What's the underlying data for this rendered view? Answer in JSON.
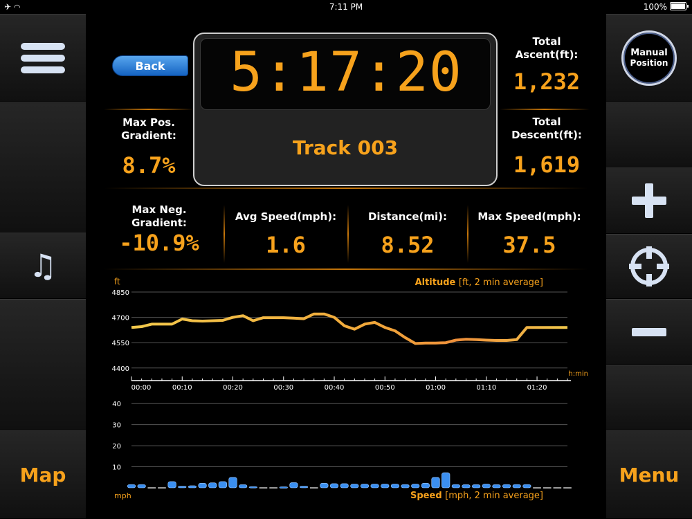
{
  "status_bar": {
    "time": "7:11 PM",
    "battery": "100%"
  },
  "nav": {
    "back_label": "Back",
    "map_label": "Map",
    "menu_label": "Menu",
    "manual_position_label": [
      "Manual",
      "Position"
    ]
  },
  "timer": {
    "value": "5:17:20",
    "track_name": "Track 003"
  },
  "stats": {
    "total_ascent": {
      "label": [
        "Total",
        "Ascent(ft):"
      ],
      "value": "1,232"
    },
    "total_descent": {
      "label": [
        "Total",
        "Descent(ft):"
      ],
      "value": "1,619"
    },
    "max_pos_gradient": {
      "label": [
        "Max Pos.",
        "Gradient:"
      ],
      "value": "8.7%"
    },
    "max_neg_gradient": {
      "label": [
        "Max Neg.",
        "Gradient:"
      ],
      "value": "-10.9%"
    },
    "avg_speed": {
      "label": "Avg Speed(mph):",
      "value": "1.6"
    },
    "distance": {
      "label": "Distance(mi):",
      "value": "8.52"
    },
    "max_speed": {
      "label": "Max Speed(mph):",
      "value": "37.5"
    }
  },
  "colors": {
    "accent": "#f7a21c",
    "altitude_line": "#f2c94c",
    "speed_bar": "#3b8ff0",
    "icon": "#d7e2f3"
  },
  "chart_data": [
    {
      "type": "line",
      "title": "Altitude",
      "subtitle": "[ft, 2 min average]",
      "ylabel": "ft",
      "xlabel": "h:min",
      "yticks": [
        4850,
        4700,
        4550,
        4400
      ],
      "ylim": [
        4350,
        4850
      ],
      "xticks": [
        "00:00",
        "00:10",
        "00:20",
        "00:30",
        "00:40",
        "00:50",
        "01:00",
        "01:10",
        "01:20"
      ],
      "xlim": [
        0,
        86
      ],
      "x": [
        0,
        2,
        4,
        6,
        8,
        10,
        12,
        14,
        16,
        18,
        20,
        22,
        24,
        26,
        28,
        30,
        32,
        34,
        36,
        38,
        40,
        42,
        44,
        46,
        48,
        50,
        52,
        54,
        56,
        58,
        60,
        62,
        64,
        66,
        68,
        70,
        72,
        74,
        76,
        78,
        80,
        82,
        84,
        86
      ],
      "values": [
        4640,
        4645,
        4660,
        4660,
        4660,
        4690,
        4680,
        4678,
        4680,
        4682,
        4700,
        4710,
        4680,
        4698,
        4698,
        4698,
        4695,
        4692,
        4720,
        4720,
        4700,
        4650,
        4630,
        4660,
        4670,
        4640,
        4620,
        4580,
        4545,
        4548,
        4548,
        4550,
        4565,
        4570,
        4568,
        4565,
        4563,
        4563,
        4568,
        4640,
        4640,
        4640,
        4640,
        4640
      ]
    },
    {
      "type": "bar",
      "title": "Speed",
      "subtitle": "[mph, 2 min average]",
      "ylabel": "mph",
      "yticks": [
        40,
        30,
        20,
        10
      ],
      "ylim": [
        0,
        45
      ],
      "x": [
        0,
        2,
        4,
        6,
        8,
        10,
        12,
        14,
        16,
        18,
        20,
        22,
        24,
        26,
        28,
        30,
        32,
        34,
        36,
        38,
        40,
        42,
        44,
        46,
        48,
        50,
        52,
        54,
        56,
        58,
        60,
        62,
        64,
        66,
        68,
        70,
        72,
        74,
        76,
        78,
        80,
        82,
        84,
        86
      ],
      "values": [
        1.6,
        1.6,
        0,
        0,
        3,
        0.8,
        1,
        2.2,
        2.4,
        3,
        5,
        1.5,
        0.6,
        0,
        0,
        0.5,
        2.5,
        0.8,
        0,
        2.2,
        2,
        2,
        1.8,
        1.8,
        1.8,
        1.8,
        1.8,
        1.6,
        1.8,
        2.2,
        5,
        7.2,
        1.6,
        1.5,
        1.5,
        1.8,
        1.5,
        1.6,
        1.6,
        1.6,
        0,
        0,
        0,
        0
      ]
    }
  ]
}
